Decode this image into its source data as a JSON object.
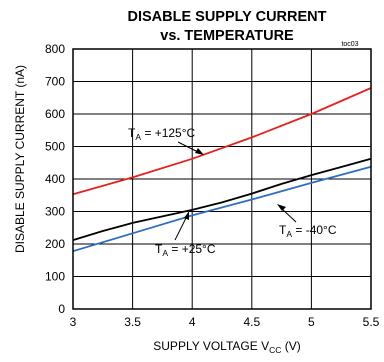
{
  "chart_data": {
    "type": "line",
    "title_line1": "DISABLE SUPPLY CURRENT",
    "title_line2": "vs. TEMPERATURE",
    "figure_code": "toc03",
    "xlabel_main": "SUPPLY VOLTAGE V",
    "xlabel_sub": "CC",
    "xlabel_unit": " (V)",
    "ylabel": "DISABLE SUPPLY CURRENT (nA)",
    "xlim": [
      3,
      5.5
    ],
    "ylim": [
      0,
      800
    ],
    "x_ticks": [
      3,
      3.5,
      4,
      4.5,
      5,
      5.5
    ],
    "x_tick_labels": [
      "3",
      "3.5",
      "4",
      "4.5",
      "5",
      "5.5"
    ],
    "y_ticks": [
      0,
      100,
      200,
      300,
      400,
      500,
      600,
      700,
      800
    ],
    "y_tick_labels": [
      "0",
      "100",
      "200",
      "300",
      "400",
      "500",
      "600",
      "700",
      "800"
    ],
    "grid": true,
    "series": [
      {
        "color": "#e8211c",
        "x": [
          3.0,
          3.5,
          4.0,
          4.5,
          5.0,
          5.5
        ],
        "y": [
          353,
          405,
          462,
          528,
          600,
          680
        ]
      },
      {
        "color": "#000000",
        "x": [
          3.0,
          3.25,
          3.5,
          3.75,
          4.0,
          4.25,
          4.5,
          4.75,
          5.0,
          5.25,
          5.5
        ],
        "y": [
          212,
          240,
          265,
          285,
          305,
          328,
          355,
          385,
          412,
          437,
          462
        ]
      },
      {
        "color": "#2d6fc4",
        "x": [
          3.0,
          3.5,
          4.0,
          4.5,
          5.0,
          5.5
        ],
        "y": [
          178,
          233,
          288,
          337,
          388,
          438
        ]
      }
    ],
    "annotations": [
      {
        "pre": "T",
        "sub": "A",
        "post": " = +125°C"
      },
      {
        "pre": "T",
        "sub": "A",
        "post": " = +25°C"
      },
      {
        "pre": "T",
        "sub": "A",
        "post": " = -40°C"
      }
    ]
  }
}
